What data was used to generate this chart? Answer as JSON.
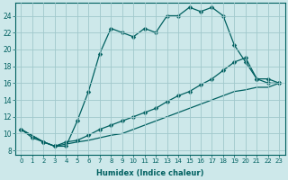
{
  "xlabel": "Humidex (Indice chaleur)",
  "bg_color": "#cde8ea",
  "grid_color": "#a0c8cc",
  "line_color": "#006060",
  "xlim": [
    -0.5,
    23.5
  ],
  "ylim": [
    7.5,
    25.5
  ],
  "xticks": [
    0,
    1,
    2,
    3,
    4,
    5,
    6,
    7,
    8,
    9,
    10,
    11,
    12,
    13,
    14,
    15,
    16,
    17,
    18,
    19,
    20,
    21,
    22,
    23
  ],
  "yticks": [
    8,
    10,
    12,
    14,
    16,
    18,
    20,
    22,
    24
  ],
  "line1_x": [
    0,
    1,
    2,
    3,
    4,
    5,
    6,
    7,
    8,
    9,
    10,
    11,
    12,
    13,
    14,
    15,
    16,
    17,
    18,
    19,
    20,
    21,
    22,
    23
  ],
  "line1_y": [
    10.5,
    9.5,
    9.0,
    8.5,
    8.5,
    11.5,
    15.0,
    19.5,
    22.5,
    22.0,
    21.5,
    22.5,
    22.0,
    24.0,
    24.0,
    25.0,
    24.5,
    25.0,
    24.0,
    20.5,
    18.5,
    16.5,
    16.0,
    16.0
  ],
  "line2_x": [
    0,
    2,
    3,
    4,
    5,
    6,
    7,
    8,
    9,
    10,
    11,
    12,
    13,
    14,
    15,
    16,
    17,
    18,
    19,
    20,
    21,
    22,
    23
  ],
  "line2_y": [
    10.5,
    9.0,
    8.5,
    9.0,
    9.2,
    9.8,
    10.5,
    11.0,
    11.5,
    12.0,
    12.5,
    13.0,
    13.8,
    14.5,
    15.0,
    15.8,
    16.5,
    17.5,
    18.5,
    19.0,
    16.5,
    16.5,
    16.0
  ],
  "line3_x": [
    0,
    2,
    3,
    5,
    6,
    7,
    8,
    9,
    10,
    11,
    12,
    13,
    14,
    15,
    16,
    17,
    18,
    19,
    20,
    21,
    22,
    23
  ],
  "line3_y": [
    10.5,
    9.0,
    8.5,
    9.0,
    9.2,
    9.5,
    9.8,
    10.0,
    10.5,
    11.0,
    11.5,
    12.0,
    12.5,
    13.0,
    13.5,
    14.0,
    14.5,
    15.0,
    15.2,
    15.5,
    15.5,
    16.0
  ]
}
